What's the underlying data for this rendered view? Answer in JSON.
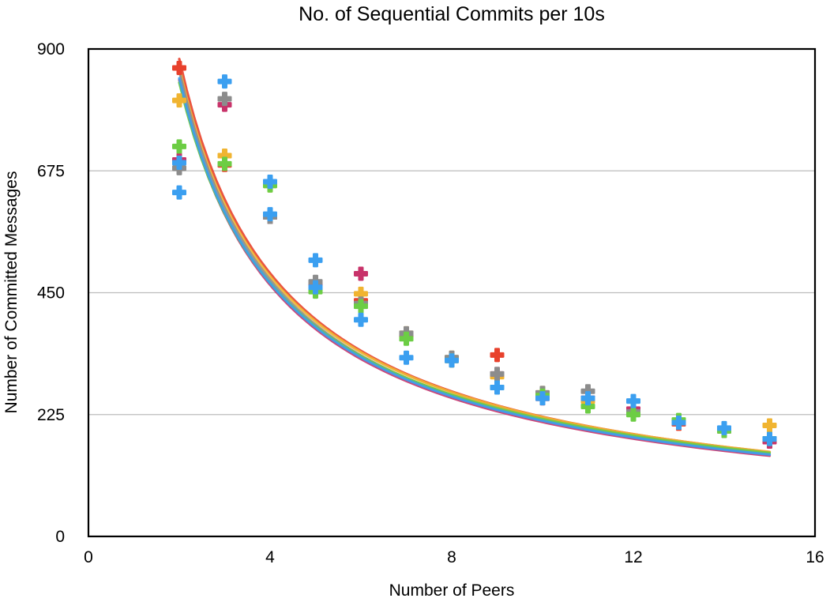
{
  "chart_data": {
    "type": "scatter",
    "title": "No. of Sequential Commits per 10s",
    "xlabel": "Number of Peers",
    "ylabel": "Number of Committed Messages",
    "xlim": [
      0,
      16
    ],
    "ylim": [
      0,
      900
    ],
    "x_ticks": [
      0,
      4,
      8,
      12,
      16
    ],
    "y_ticks": [
      0,
      225,
      450,
      675,
      900
    ],
    "y_gridlines": true,
    "legend": "none",
    "marker": "plus",
    "series": [
      {
        "color": "#e8412c",
        "points": [
          [
            2,
            865
          ],
          [
            3,
            686
          ],
          [
            4,
            590
          ],
          [
            5,
            462
          ],
          [
            6,
            435
          ],
          [
            7,
            370
          ],
          [
            8,
            325
          ],
          [
            9,
            335
          ],
          [
            10,
            255
          ],
          [
            11,
            255
          ],
          [
            12,
            230
          ],
          [
            13,
            208
          ],
          [
            14,
            195
          ],
          [
            15,
            180
          ]
        ],
        "trend": {
          "a": 1600,
          "b": -0.86
        }
      },
      {
        "color": "#f0b431",
        "points": [
          [
            2,
            805
          ],
          [
            3,
            703
          ],
          [
            4,
            648
          ],
          [
            5,
            460
          ],
          [
            6,
            448
          ],
          [
            7,
            375
          ],
          [
            8,
            330
          ],
          [
            9,
            295
          ],
          [
            10,
            265
          ],
          [
            11,
            250
          ],
          [
            12,
            228
          ],
          [
            13,
            210
          ],
          [
            14,
            195
          ],
          [
            15,
            205
          ]
        ],
        "trend": {
          "a": 1560,
          "b": -0.85
        }
      },
      {
        "color": "#c8336a",
        "points": [
          [
            2,
            695
          ],
          [
            3,
            797
          ],
          [
            4,
            590
          ],
          [
            5,
            465
          ],
          [
            6,
            485
          ],
          [
            7,
            370
          ],
          [
            8,
            328
          ],
          [
            9,
            300
          ],
          [
            10,
            255
          ],
          [
            11,
            255
          ],
          [
            12,
            235
          ],
          [
            13,
            210
          ],
          [
            14,
            195
          ],
          [
            15,
            175
          ]
        ],
        "trend": {
          "a": 1530,
          "b": -0.86
        }
      },
      {
        "color": "#8c8c8c",
        "points": [
          [
            2,
            680
          ],
          [
            3,
            808
          ],
          [
            4,
            590
          ],
          [
            5,
            470
          ],
          [
            6,
            430
          ],
          [
            7,
            375
          ],
          [
            8,
            330
          ],
          [
            9,
            300
          ],
          [
            10,
            265
          ],
          [
            11,
            268
          ],
          [
            12,
            230
          ],
          [
            13,
            210
          ],
          [
            14,
            195
          ],
          [
            15,
            180
          ]
        ],
        "trend": {
          "a": 1560,
          "b": -0.86
        }
      },
      {
        "color": "#6ccd44",
        "points": [
          [
            2,
            720
          ],
          [
            3,
            688
          ],
          [
            4,
            648
          ],
          [
            5,
            452
          ],
          [
            6,
            425
          ],
          [
            7,
            365
          ],
          [
            8,
            325
          ],
          [
            9,
            275
          ],
          [
            10,
            260
          ],
          [
            11,
            240
          ],
          [
            12,
            225
          ],
          [
            13,
            215
          ],
          [
            14,
            195
          ],
          [
            15,
            180
          ]
        ],
        "trend": {
          "a": 1500,
          "b": -0.84
        }
      },
      {
        "color": "#3b9ff0",
        "points": [
          [
            2,
            690
          ],
          [
            2,
            635
          ],
          [
            3,
            840
          ],
          [
            4,
            655
          ],
          [
            4,
            595
          ],
          [
            5,
            510
          ],
          [
            5,
            460
          ],
          [
            6,
            400
          ],
          [
            7,
            330
          ],
          [
            8,
            325
          ],
          [
            9,
            275
          ],
          [
            10,
            255
          ],
          [
            11,
            255
          ],
          [
            12,
            250
          ],
          [
            13,
            210
          ],
          [
            14,
            200
          ],
          [
            15,
            180
          ]
        ],
        "trend": {
          "a": 1530,
          "b": -0.855
        }
      }
    ]
  }
}
